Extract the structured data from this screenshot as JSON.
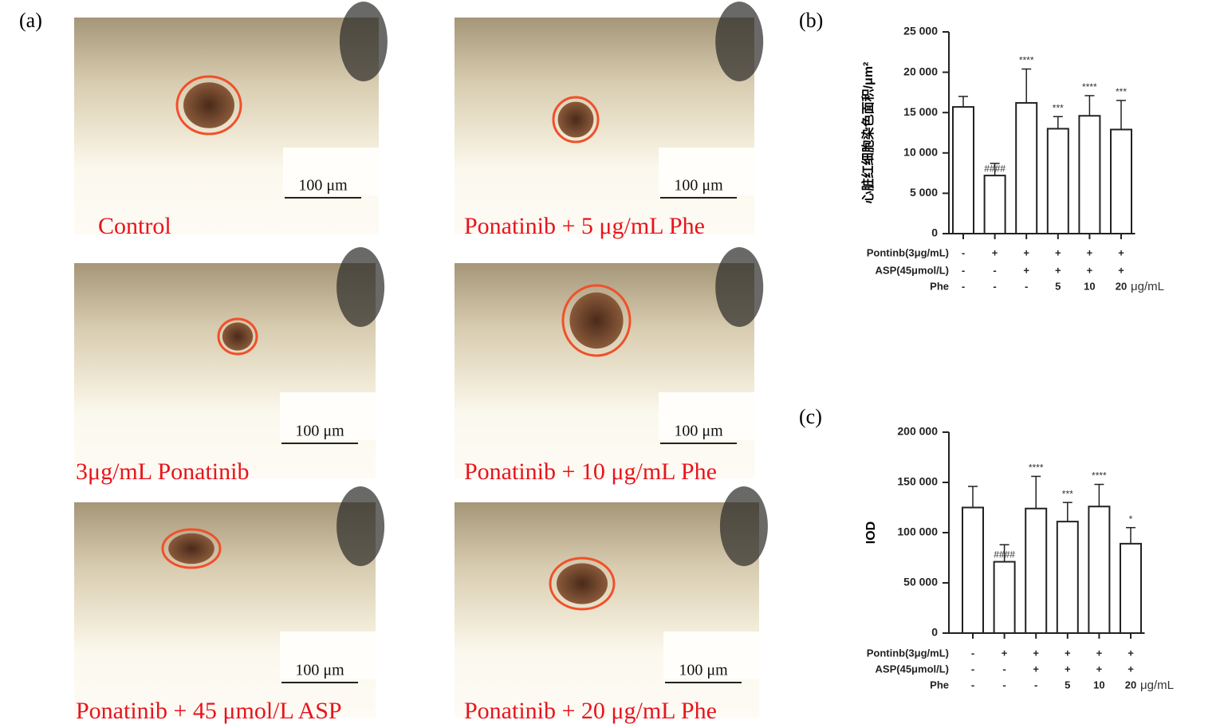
{
  "panel_a": {
    "label": "(a)",
    "images": [
      {
        "caption": "Control",
        "scale_bar": "100 μm"
      },
      {
        "caption": "Ponatinib + 5 μg/mL Phe",
        "scale_bar": "100 μm"
      },
      {
        "caption": "3μg/mL  Ponatinib",
        "scale_bar": "100 μm"
      },
      {
        "caption": "Ponatinib + 10 μg/mL Phe",
        "scale_bar": "100 μm"
      },
      {
        "caption": "Ponatinib + 45 μmol/L ASP",
        "scale_bar": "100 μm"
      },
      {
        "caption": "Ponatinib + 20 μg/mL Phe",
        "scale_bar": "100 μm"
      }
    ]
  },
  "chart_data": [
    {
      "type": "bar",
      "label": "(b)",
      "y_label": "心脏红细胞染色面积/μm²",
      "categories": [
        null,
        null,
        null,
        null,
        null,
        null
      ],
      "values": [
        15700,
        7200,
        16200,
        13000,
        14600,
        12900
      ],
      "errors": [
        1300,
        1500,
        4200,
        1500,
        2500,
        3600
      ],
      "significance": [
        null,
        "####",
        "****",
        "***",
        "****",
        "***"
      ],
      "color": "#ffffff",
      "ylim": [
        0,
        25000
      ],
      "yticks": [
        0,
        {
          "value": 5000,
          "label": "5 000"
        },
        {
          "value": 10000,
          "label": "10 000"
        },
        {
          "value": 15000,
          "label": "15 000"
        },
        {
          "value": 20000,
          "label": "20 000"
        },
        {
          "value": 25000,
          "label": "25 000"
        }
      ],
      "treatment_rows": [
        {
          "name": "Pontinb(3μg/mL)",
          "marks": [
            "-",
            "+",
            "+",
            "+",
            "+",
            "+"
          ]
        },
        {
          "name": "ASP(45μmol/L)",
          "marks": [
            "-",
            "-",
            "+",
            "+",
            "+",
            "+"
          ]
        },
        {
          "name": "Phe",
          "marks": [
            "-",
            "-",
            "-",
            "5",
            "10",
            "20"
          ]
        }
      ],
      "unit": "μg/mL"
    },
    {
      "type": "bar",
      "label": "(c)",
      "y_label": "IOD",
      "categories": [
        null,
        null,
        null,
        null,
        null,
        null
      ],
      "values": [
        125000,
        71000,
        124000,
        111000,
        126000,
        89000
      ],
      "errors": [
        21000,
        17000,
        32000,
        19000,
        22000,
        16000
      ],
      "significance": [
        null,
        "####",
        "****",
        "***",
        "****",
        "*"
      ],
      "color": "#ffffff",
      "ylim": [
        0,
        200000
      ],
      "yticks": [
        0,
        {
          "value": 50000,
          "label": "50 000"
        },
        {
          "value": 100000,
          "label": "100 000"
        },
        {
          "value": 150000,
          "label": "150 000"
        },
        {
          "value": 200000,
          "label": "200 000"
        }
      ],
      "treatment_rows": [
        {
          "name": "Pontinb(3μg/mL)",
          "marks": [
            "-",
            "+",
            "+",
            "+",
            "+",
            "+"
          ]
        },
        {
          "name": "ASP(45μmol/L)",
          "marks": [
            "-",
            "-",
            "+",
            "+",
            "+",
            "+"
          ]
        },
        {
          "name": "Phe",
          "marks": [
            "-",
            "-",
            "-",
            "5",
            "10",
            "20"
          ]
        }
      ],
      "unit": "μg/mL"
    }
  ]
}
